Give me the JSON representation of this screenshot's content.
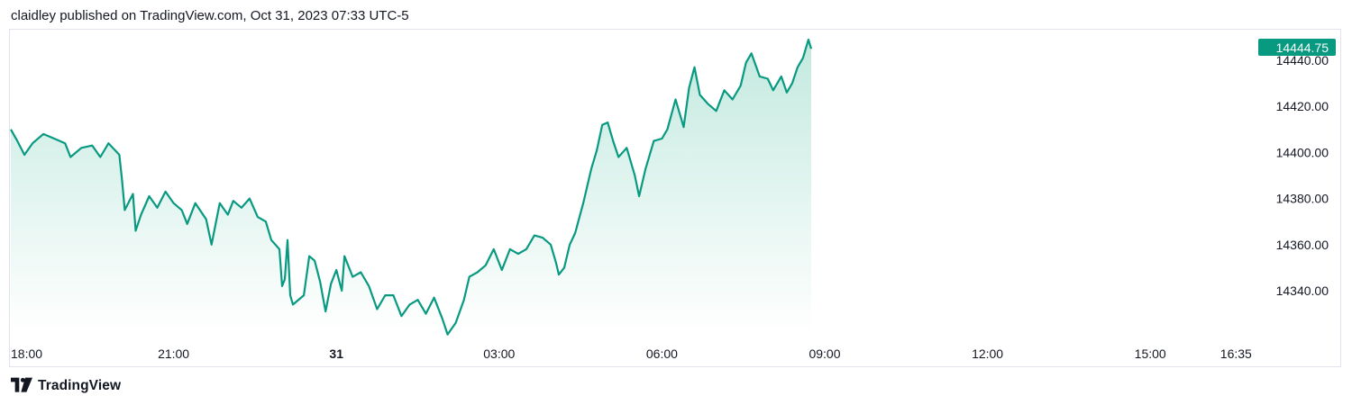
{
  "header": {
    "text": "claidley published on TradingView.com, Oct 31, 2023 07:33 UTC-5"
  },
  "footer": {
    "brand": "TradingView",
    "logo_icon": "tradingview-logo-icon"
  },
  "colors": {
    "line": "#089981",
    "fill_top": "#bfe8dd",
    "price_tag": "#089981",
    "border": "#e0e3eb",
    "text": "#131722"
  },
  "chart_data": {
    "type": "area",
    "last_price": "14444.75",
    "x_ticks": [
      {
        "label": "18:00",
        "hour": 0,
        "bold": false
      },
      {
        "label": "21:00",
        "hour": 3,
        "bold": false
      },
      {
        "label": "31",
        "hour": 6,
        "bold": true
      },
      {
        "label": "03:00",
        "hour": 9,
        "bold": false
      },
      {
        "label": "06:00",
        "hour": 12,
        "bold": false
      },
      {
        "label": "09:00",
        "hour": 15,
        "bold": false
      },
      {
        "label": "12:00",
        "hour": 18,
        "bold": false
      },
      {
        "label": "15:00",
        "hour": 21,
        "bold": false
      },
      {
        "label": "16:35",
        "hour": 22.58,
        "bold": false
      }
    ],
    "y_ticks": [
      {
        "label": "14440.00",
        "value": 14440
      },
      {
        "label": "14420.00",
        "value": 14420
      },
      {
        "label": "14400.00",
        "value": 14400
      },
      {
        "label": "14380.00",
        "value": 14380
      },
      {
        "label": "14360.00",
        "value": 14360
      },
      {
        "label": "14340.00",
        "value": 14340
      }
    ],
    "ylim": [
      14320,
      14450
    ],
    "series": [
      {
        "points": [
          [
            0.0,
            14410
          ],
          [
            0.12,
            14405
          ],
          [
            0.25,
            14399
          ],
          [
            0.4,
            14404
          ],
          [
            0.6,
            14408
          ],
          [
            0.8,
            14406
          ],
          [
            1.0,
            14404
          ],
          [
            1.1,
            14398
          ],
          [
            1.3,
            14402
          ],
          [
            1.5,
            14403
          ],
          [
            1.65,
            14398
          ],
          [
            1.8,
            14404
          ],
          [
            2.0,
            14399
          ],
          [
            2.05,
            14388
          ],
          [
            2.1,
            14375
          ],
          [
            2.25,
            14382
          ],
          [
            2.3,
            14366
          ],
          [
            2.4,
            14373
          ],
          [
            2.55,
            14381
          ],
          [
            2.7,
            14376
          ],
          [
            2.85,
            14383
          ],
          [
            3.0,
            14378
          ],
          [
            3.15,
            14375
          ],
          [
            3.25,
            14369
          ],
          [
            3.4,
            14378
          ],
          [
            3.6,
            14371
          ],
          [
            3.7,
            14360
          ],
          [
            3.85,
            14378
          ],
          [
            4.0,
            14373
          ],
          [
            4.1,
            14379
          ],
          [
            4.25,
            14376
          ],
          [
            4.4,
            14380
          ],
          [
            4.55,
            14372
          ],
          [
            4.7,
            14370
          ],
          [
            4.8,
            14362
          ],
          [
            4.95,
            14358
          ],
          [
            5.0,
            14342
          ],
          [
            5.05,
            14345
          ],
          [
            5.1,
            14362
          ],
          [
            5.15,
            14338
          ],
          [
            5.2,
            14334
          ],
          [
            5.4,
            14338
          ],
          [
            5.5,
            14355
          ],
          [
            5.6,
            14353
          ],
          [
            5.7,
            14344
          ],
          [
            5.8,
            14331
          ],
          [
            5.9,
            14343
          ],
          [
            6.0,
            14349
          ],
          [
            6.1,
            14340
          ],
          [
            6.15,
            14355
          ],
          [
            6.3,
            14346
          ],
          [
            6.45,
            14348
          ],
          [
            6.6,
            14342
          ],
          [
            6.75,
            14332
          ],
          [
            6.9,
            14338
          ],
          [
            7.05,
            14338
          ],
          [
            7.2,
            14329
          ],
          [
            7.35,
            14334
          ],
          [
            7.5,
            14336
          ],
          [
            7.65,
            14330
          ],
          [
            7.8,
            14337
          ],
          [
            7.95,
            14328
          ],
          [
            8.05,
            14321
          ],
          [
            8.2,
            14326
          ],
          [
            8.35,
            14336
          ],
          [
            8.45,
            14346
          ],
          [
            8.6,
            14348
          ],
          [
            8.75,
            14351
          ],
          [
            8.9,
            14358
          ],
          [
            9.05,
            14349
          ],
          [
            9.2,
            14358
          ],
          [
            9.35,
            14356
          ],
          [
            9.5,
            14358
          ],
          [
            9.65,
            14364
          ],
          [
            9.8,
            14363
          ],
          [
            9.95,
            14360
          ],
          [
            10.05,
            14352
          ],
          [
            10.1,
            14347
          ],
          [
            10.2,
            14350
          ],
          [
            10.3,
            14360
          ],
          [
            10.4,
            14365
          ],
          [
            10.55,
            14378
          ],
          [
            10.7,
            14393
          ],
          [
            10.8,
            14401
          ],
          [
            10.9,
            14412
          ],
          [
            11.0,
            14413
          ],
          [
            11.1,
            14405
          ],
          [
            11.2,
            14398
          ],
          [
            11.35,
            14402
          ],
          [
            11.5,
            14390
          ],
          [
            11.58,
            14381
          ],
          [
            11.7,
            14393
          ],
          [
            11.85,
            14405
          ],
          [
            12.0,
            14406
          ],
          [
            12.1,
            14410
          ],
          [
            12.25,
            14423
          ],
          [
            12.4,
            14411
          ],
          [
            12.5,
            14428
          ],
          [
            12.6,
            14437
          ],
          [
            12.7,
            14425
          ],
          [
            12.85,
            14421
          ],
          [
            13.0,
            14418
          ],
          [
            13.15,
            14427
          ],
          [
            13.3,
            14423
          ],
          [
            13.45,
            14429
          ],
          [
            13.55,
            14439
          ],
          [
            13.65,
            14443
          ],
          [
            13.8,
            14433
          ],
          [
            13.95,
            14432
          ],
          [
            14.05,
            14427
          ],
          [
            14.2,
            14433
          ],
          [
            14.3,
            14426
          ],
          [
            14.4,
            14430
          ],
          [
            14.5,
            14437
          ],
          [
            14.6,
            14441
          ],
          [
            14.7,
            14449
          ],
          [
            14.75,
            14445
          ]
        ]
      }
    ]
  }
}
